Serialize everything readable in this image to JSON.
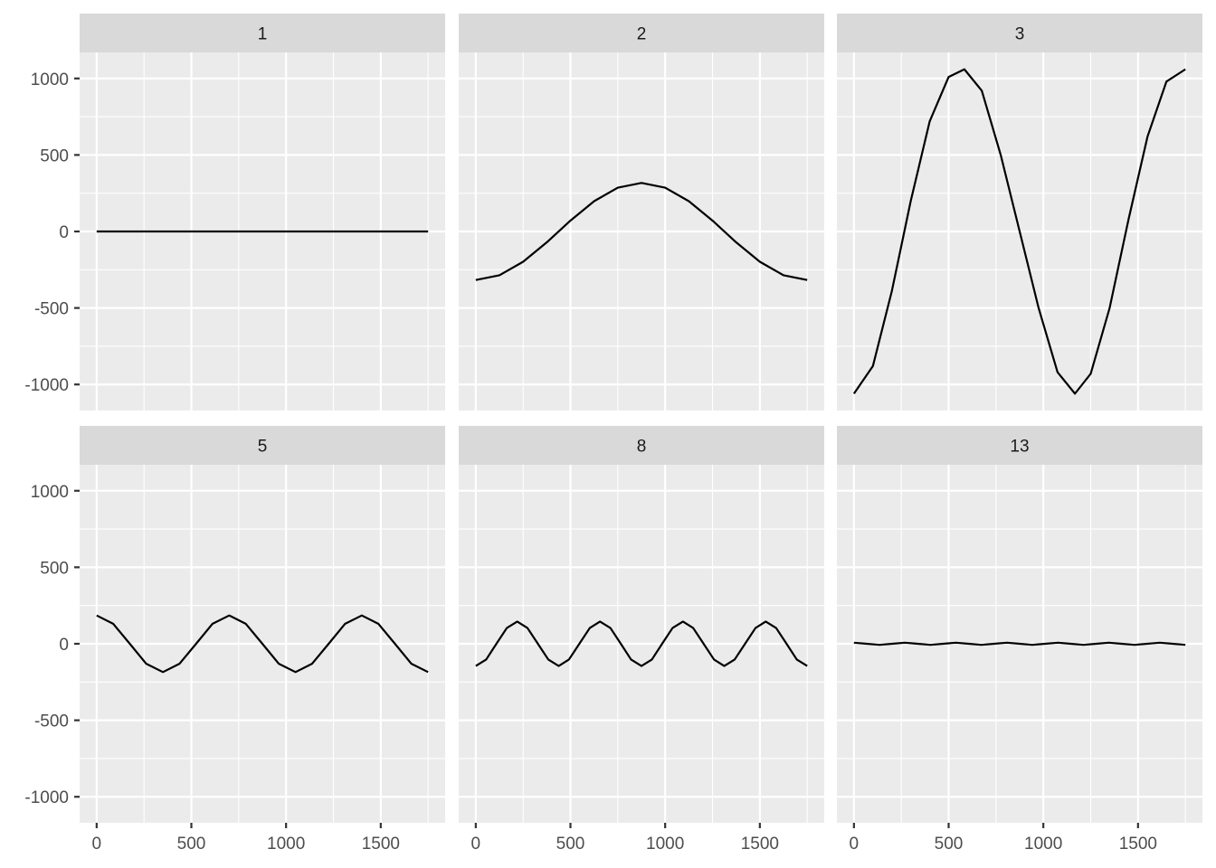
{
  "chart_data": {
    "type": "line",
    "layout": "facet-grid",
    "facet_rows": 2,
    "facet_cols": 3,
    "title": "",
    "xlabel": "",
    "ylabel": "",
    "xlim": [
      -90,
      1840
    ],
    "ylim": [
      -1170,
      1170
    ],
    "x_ticks": [
      0,
      500,
      1000,
      1500
    ],
    "x_tick_labels": [
      "0",
      "500",
      "1000",
      "1500"
    ],
    "x_minor": [
      250,
      750,
      1250,
      1750
    ],
    "y_ticks": [
      -1000,
      -500,
      0,
      500,
      1000
    ],
    "y_tick_labels": [
      "-1000",
      "-500",
      "0",
      "500",
      "1000"
    ],
    "y_minor": [
      -750,
      -250,
      250,
      750
    ],
    "grid": true,
    "legend": "none",
    "colors": {
      "panel": "#ebebeb",
      "strip": "#d9d9d9",
      "grid": "#ffffff",
      "line": "#000000"
    },
    "panels": [
      {
        "label": "1",
        "x": [
          0,
          250,
          500,
          750,
          1000,
          1250,
          1500,
          1750
        ],
        "y": [
          0,
          0,
          0,
          0,
          0,
          0,
          0,
          0
        ]
      },
      {
        "label": "2",
        "x": [
          0,
          125,
          250,
          375,
          500,
          625,
          750,
          875,
          1000,
          1125,
          1250,
          1375,
          1500,
          1625,
          1750
        ],
        "y": [
          -317,
          -286,
          -198,
          -71,
          71,
          198,
          286,
          317,
          286,
          198,
          71,
          -71,
          -198,
          -286,
          -317
        ]
      },
      {
        "label": "3",
        "x": [
          0,
          100,
          200,
          300,
          400,
          500,
          583,
          675,
          775,
          875,
          975,
          1075,
          1167,
          1250,
          1350,
          1450,
          1550,
          1650,
          1750
        ],
        "y": [
          -1060,
          -880,
          -390,
          200,
          720,
          1010,
          1060,
          920,
          500,
          0,
          -500,
          -920,
          -1060,
          -930,
          -500,
          80,
          620,
          980,
          1060
        ]
      },
      {
        "label": "5",
        "x": [
          0,
          87,
          175,
          262,
          350,
          437,
          525,
          612,
          700,
          787,
          875,
          962,
          1050,
          1137,
          1225,
          1312,
          1400,
          1487,
          1575,
          1662,
          1750
        ],
        "y": [
          185,
          131,
          0,
          -131,
          -185,
          -131,
          0,
          131,
          185,
          131,
          0,
          -131,
          -185,
          -131,
          0,
          131,
          185,
          131,
          0,
          -131,
          -185
        ]
      },
      {
        "label": "8",
        "x": [
          0,
          55,
          109,
          164,
          219,
          273,
          328,
          383,
          438,
          492,
          547,
          602,
          656,
          711,
          766,
          820,
          875,
          930,
          984,
          1039,
          1094,
          1148,
          1203,
          1258,
          1312,
          1367,
          1422,
          1477,
          1531,
          1586,
          1641,
          1695,
          1750
        ],
        "y": [
          -145,
          -103,
          0,
          103,
          145,
          103,
          0,
          -103,
          -145,
          -103,
          0,
          103,
          145,
          103,
          0,
          -103,
          -145,
          -103,
          0,
          103,
          145,
          103,
          0,
          -103,
          -145,
          -103,
          0,
          103,
          145,
          103,
          0,
          -103,
          -145
        ]
      },
      {
        "label": "13",
        "x": [
          0,
          67,
          135,
          202,
          269,
          337,
          404,
          471,
          538,
          606,
          673,
          740,
          808,
          875,
          942,
          1010,
          1077,
          1144,
          1212,
          1279,
          1346,
          1413,
          1481,
          1548,
          1615,
          1683,
          1750
        ],
        "y": [
          7,
          0,
          -7,
          0,
          7,
          0,
          -7,
          0,
          7,
          0,
          -7,
          0,
          7,
          0,
          -7,
          0,
          7,
          0,
          -7,
          0,
          7,
          0,
          -7,
          0,
          7,
          0,
          -7
        ]
      }
    ]
  }
}
